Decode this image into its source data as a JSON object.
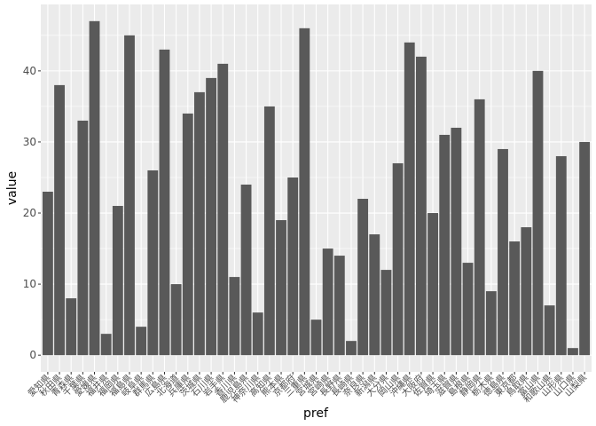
{
  "chart_data": {
    "type": "bar",
    "xlabel": "pref",
    "ylabel": "value",
    "ylim": [
      -2.35,
      49.35
    ],
    "yticks": [
      0,
      10,
      20,
      30,
      40
    ],
    "grid": true,
    "colors": {
      "panel": "#ebebeb",
      "grid_major": "#ffffff",
      "bar": "#595959",
      "tick_text": "#4d4d4d"
    },
    "categories": [
      "愛知県",
      "秋田県",
      "青森県",
      "千葉県",
      "愛媛県",
      "福井県",
      "福岡県",
      "福島県",
      "岐阜県",
      "群馬県",
      "広島県",
      "北海道",
      "兵庫県",
      "茨城県",
      "石川県",
      "岩手県",
      "香川県",
      "鹿児島県",
      "神奈川県",
      "高知県",
      "熊本県",
      "京都府",
      "三重県",
      "宮城県",
      "宮崎県",
      "長野県",
      "長崎県",
      "奈良県",
      "新潟県",
      "大分県",
      "岡山県",
      "沖縄県",
      "大阪府",
      "佐賀県",
      "埼玉県",
      "滋賀県",
      "島根県",
      "静岡県",
      "栃木県",
      "徳島県",
      "東京都",
      "鳥取県",
      "富山県",
      "和歌山県",
      "山形県",
      "山口県",
      "山梨県"
    ],
    "values": [
      23,
      38,
      8,
      33,
      47,
      3,
      21,
      45,
      4,
      26,
      43,
      10,
      34,
      37,
      39,
      41,
      11,
      24,
      6,
      35,
      19,
      25,
      46,
      5,
      15,
      14,
      2,
      22,
      17,
      12,
      27,
      44,
      42,
      20,
      31,
      32,
      13,
      36,
      9,
      29,
      16,
      18,
      40,
      7,
      28,
      1,
      30
    ]
  }
}
